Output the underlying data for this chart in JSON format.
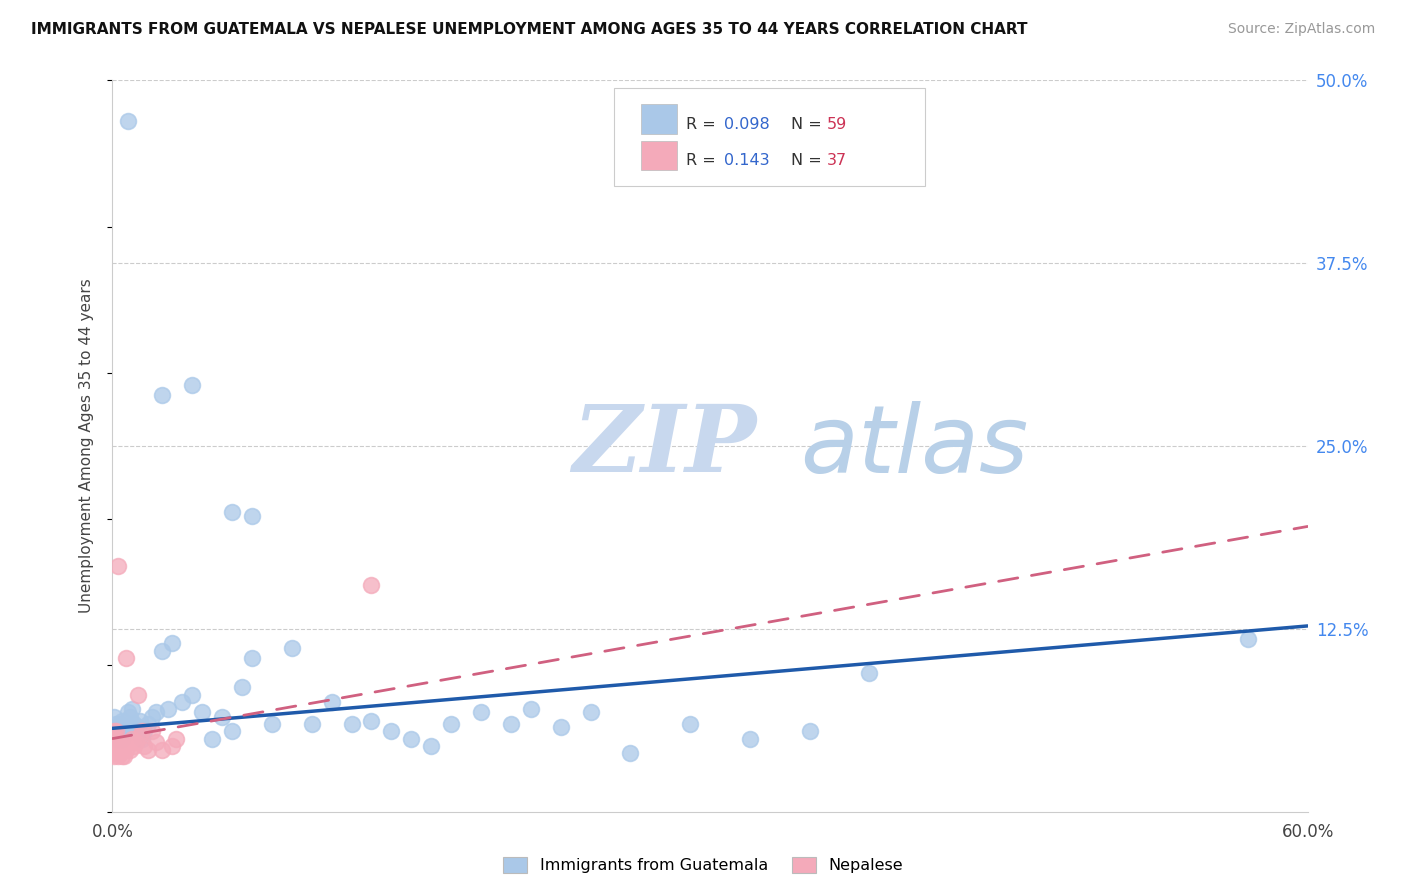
{
  "title": "IMMIGRANTS FROM GUATEMALA VS NEPALESE UNEMPLOYMENT AMONG AGES 35 TO 44 YEARS CORRELATION CHART",
  "source": "Source: ZipAtlas.com",
  "ylabel": "Unemployment Among Ages 35 to 44 years",
  "xlim": [
    0,
    0.6
  ],
  "ylim": [
    0,
    0.5
  ],
  "ytick_positions": [
    0.125,
    0.25,
    0.375,
    0.5
  ],
  "ytick_labels": [
    "12.5%",
    "25.0%",
    "37.5%",
    "50.0%"
  ],
  "watermark_zip": "ZIP",
  "watermark_atlas": "atlas",
  "legend_r1": "R = 0.098",
  "legend_n1": "N = 59",
  "legend_r2": "R = 0.143",
  "legend_n2": "N = 37",
  "legend_label1": "Immigrants from Guatemala",
  "legend_label2": "Nepalese",
  "blue_color": "#aac8e8",
  "pink_color": "#f4aaba",
  "trend_blue": "#1f5aaa",
  "trend_pink": "#d06080",
  "blue_trend_x": [
    0.0,
    0.6
  ],
  "blue_trend_y": [
    0.057,
    0.127
  ],
  "pink_trend_x": [
    0.0,
    0.6
  ],
  "pink_trend_y": [
    0.05,
    0.195
  ],
  "blue_scatter_x": [
    0.008,
    0.025,
    0.04,
    0.06,
    0.07,
    0.001,
    0.002,
    0.003,
    0.003,
    0.004,
    0.004,
    0.005,
    0.005,
    0.006,
    0.007,
    0.008,
    0.009,
    0.01,
    0.011,
    0.012,
    0.013,
    0.014,
    0.015,
    0.016,
    0.018,
    0.02,
    0.022,
    0.025,
    0.028,
    0.03,
    0.035,
    0.04,
    0.045,
    0.05,
    0.055,
    0.06,
    0.065,
    0.07,
    0.08,
    0.09,
    0.1,
    0.11,
    0.12,
    0.13,
    0.14,
    0.15,
    0.16,
    0.17,
    0.185,
    0.2,
    0.21,
    0.225,
    0.24,
    0.26,
    0.29,
    0.32,
    0.35,
    0.38,
    0.57
  ],
  "blue_scatter_y": [
    0.472,
    0.285,
    0.292,
    0.205,
    0.202,
    0.065,
    0.06,
    0.055,
    0.05,
    0.06,
    0.058,
    0.062,
    0.05,
    0.055,
    0.058,
    0.068,
    0.065,
    0.07,
    0.06,
    0.055,
    0.058,
    0.062,
    0.05,
    0.055,
    0.06,
    0.065,
    0.068,
    0.11,
    0.07,
    0.115,
    0.075,
    0.08,
    0.068,
    0.05,
    0.065,
    0.055,
    0.085,
    0.105,
    0.06,
    0.112,
    0.06,
    0.075,
    0.06,
    0.062,
    0.055,
    0.05,
    0.045,
    0.06,
    0.068,
    0.06,
    0.07,
    0.058,
    0.068,
    0.04,
    0.06,
    0.05,
    0.055,
    0.095,
    0.118
  ],
  "pink_scatter_x": [
    0.003,
    0.007,
    0.013,
    0.001,
    0.001,
    0.001,
    0.001,
    0.001,
    0.002,
    0.002,
    0.002,
    0.002,
    0.003,
    0.003,
    0.003,
    0.004,
    0.004,
    0.005,
    0.005,
    0.006,
    0.006,
    0.007,
    0.008,
    0.009,
    0.01,
    0.011,
    0.012,
    0.014,
    0.015,
    0.016,
    0.018,
    0.02,
    0.022,
    0.025,
    0.03,
    0.032,
    0.13
  ],
  "pink_scatter_y": [
    0.168,
    0.105,
    0.08,
    0.038,
    0.042,
    0.048,
    0.052,
    0.055,
    0.04,
    0.045,
    0.05,
    0.055,
    0.038,
    0.042,
    0.048,
    0.04,
    0.045,
    0.038,
    0.042,
    0.038,
    0.045,
    0.042,
    0.048,
    0.042,
    0.05,
    0.045,
    0.048,
    0.052,
    0.055,
    0.045,
    0.042,
    0.055,
    0.048,
    0.042,
    0.045,
    0.05,
    0.155
  ]
}
